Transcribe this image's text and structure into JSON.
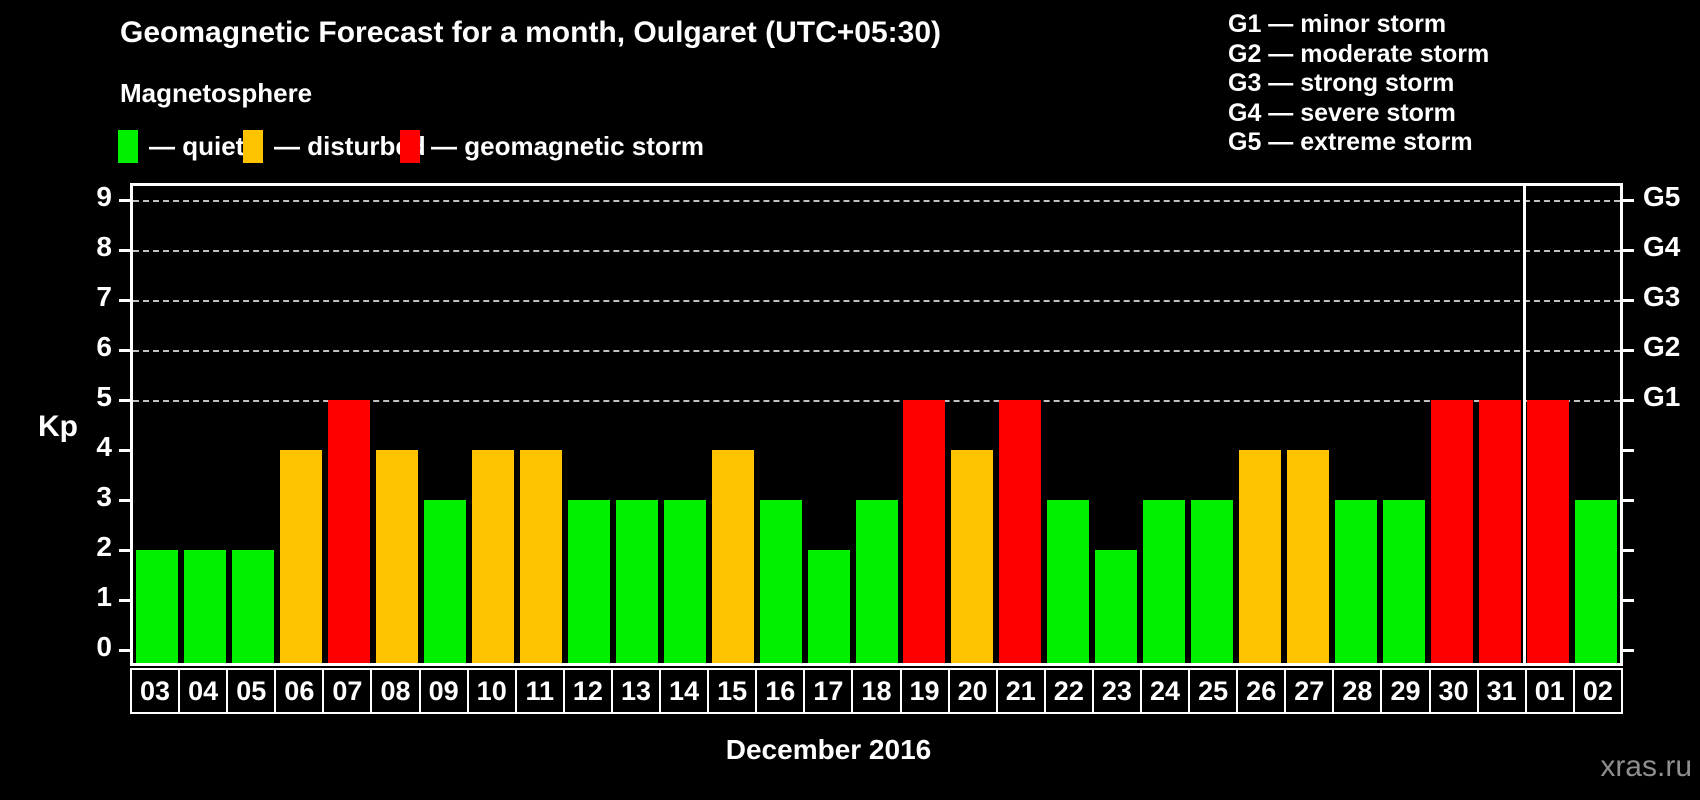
{
  "title": "Geomagnetic Forecast for a month, Oulgaret (UTC+05:30)",
  "subtitle": "Magnetosphere",
  "legend": {
    "items": [
      {
        "key": "quiet",
        "label": "— quiet",
        "color": "#00f000"
      },
      {
        "key": "disturbed",
        "label": "— disturbed",
        "color": "#ffc300"
      },
      {
        "key": "storm",
        "label": "— geomagnetic storm",
        "color": "#ff0000"
      }
    ],
    "positions_x": [
      118,
      243,
      400
    ]
  },
  "g_legend": {
    "lines": [
      "G1 — minor storm",
      "G2 — moderate storm",
      "G3 — strong storm",
      "G4 — severe storm",
      "G5 — extreme storm"
    ]
  },
  "watermark": "xras.ru",
  "chart_data": {
    "type": "bar",
    "title": "Geomagnetic Forecast for a month, Oulgaret (UTC+05:30)",
    "xlabel": "December 2016",
    "ylabel": "Kp",
    "ylim": [
      0,
      9
    ],
    "yticks": [
      0,
      1,
      2,
      3,
      4,
      5,
      6,
      7,
      8,
      9
    ],
    "gridlines_at": [
      5,
      6,
      7,
      8,
      9
    ],
    "grid": "dashed horizontal lines only at Kp 5-9",
    "legend_position": "top-left",
    "right_axis": [
      {
        "kp": 5,
        "label": "G1"
      },
      {
        "kp": 6,
        "label": "G2"
      },
      {
        "kp": 7,
        "label": "G3"
      },
      {
        "kp": 8,
        "label": "G4"
      },
      {
        "kp": 9,
        "label": "G5"
      }
    ],
    "categories": [
      "03",
      "04",
      "05",
      "06",
      "07",
      "08",
      "09",
      "10",
      "11",
      "12",
      "13",
      "14",
      "15",
      "16",
      "17",
      "18",
      "19",
      "20",
      "21",
      "22",
      "23",
      "24",
      "25",
      "26",
      "27",
      "28",
      "29",
      "30",
      "31",
      "01",
      "02"
    ],
    "values": [
      2,
      2,
      2,
      4,
      5,
      4,
      3,
      4,
      4,
      3,
      3,
      3,
      4,
      3,
      2,
      3,
      5,
      4,
      5,
      3,
      2,
      3,
      3,
      4,
      4,
      3,
      3,
      5,
      5,
      5,
      3
    ],
    "statuses": [
      "quiet",
      "quiet",
      "quiet",
      "disturbed",
      "storm",
      "disturbed",
      "quiet",
      "disturbed",
      "disturbed",
      "quiet",
      "quiet",
      "quiet",
      "disturbed",
      "quiet",
      "quiet",
      "quiet",
      "storm",
      "disturbed",
      "storm",
      "quiet",
      "quiet",
      "quiet",
      "quiet",
      "disturbed",
      "disturbed",
      "quiet",
      "quiet",
      "storm",
      "storm",
      "storm",
      "quiet"
    ],
    "colors": {
      "quiet": "#00f000",
      "disturbed": "#ffc300",
      "storm": "#ff0000"
    },
    "month_separator_after_index": 28
  }
}
